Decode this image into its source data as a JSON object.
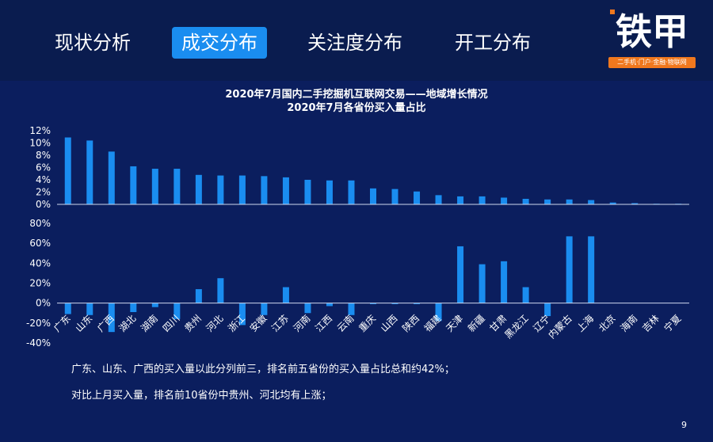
{
  "nav": {
    "tabs": [
      {
        "label": "现状分析"
      },
      {
        "label": "成交分布",
        "active": true
      },
      {
        "label": "关注度分布"
      },
      {
        "label": "开工分布"
      }
    ]
  },
  "logo": {
    "text": "铁甲",
    "tagline": "二手机·门户·金融·物联网"
  },
  "colors": {
    "accent": "#1a8df0",
    "brand_orange": "#f0781e",
    "background": "#0b1e5e",
    "header": "#0a1c4f"
  },
  "chart_data": {
    "type": "bar",
    "title": "2020年7月国内二手挖掘机互联网交易——地域增长情况",
    "subtitle": "2020年7月各省份买入量占比",
    "categories": [
      "广东",
      "山东",
      "广西",
      "湖北",
      "湖南",
      "四川",
      "贵州",
      "河北",
      "浙江",
      "安徽",
      "江苏",
      "河南",
      "江西",
      "云南",
      "重庆",
      "山西",
      "陕西",
      "福建",
      "天津",
      "新疆",
      "甘肃",
      "黑龙江",
      "辽宁",
      "内蒙古",
      "上海",
      "北京",
      "海南",
      "吉林",
      "宁夏"
    ],
    "series": [
      {
        "values": [
          10.9,
          10.4,
          8.6,
          6.2,
          5.8,
          5.8,
          4.8,
          4.7,
          4.7,
          4.6,
          4.4,
          4.0,
          3.9,
          3.9,
          2.6,
          2.5,
          2.1,
          1.5,
          1.3,
          1.3,
          1.1,
          0.9,
          0.8,
          0.8,
          0.7,
          0.3,
          0.2,
          0.1,
          0.1
        ],
        "ylim": [
          0,
          12
        ],
        "yticks": [
          "0%",
          "2%",
          "4%",
          "6%",
          "8%",
          "10%",
          "12%"
        ]
      },
      {
        "values": [
          -11,
          -12,
          -29,
          -9,
          -4,
          -16,
          14,
          25,
          -22,
          -12,
          16,
          -10,
          -3,
          -12,
          -1,
          -1,
          -1,
          -18,
          57,
          39,
          42,
          16,
          -13,
          67,
          67,
          0,
          0,
          0,
          0
        ],
        "ylim": [
          -40,
          80
        ],
        "yticks": [
          "-40%",
          "-20%",
          "0%",
          "20%",
          "40%",
          "60%",
          "80%"
        ]
      }
    ]
  },
  "notes": [
    "广东、山东、广西的买入量以此分列前三，排名前五省份的买入量占比总和约42%；",
    "对比上月买入量，排名前10省份中贵州、河北均有上涨；"
  ],
  "page_number": "9"
}
